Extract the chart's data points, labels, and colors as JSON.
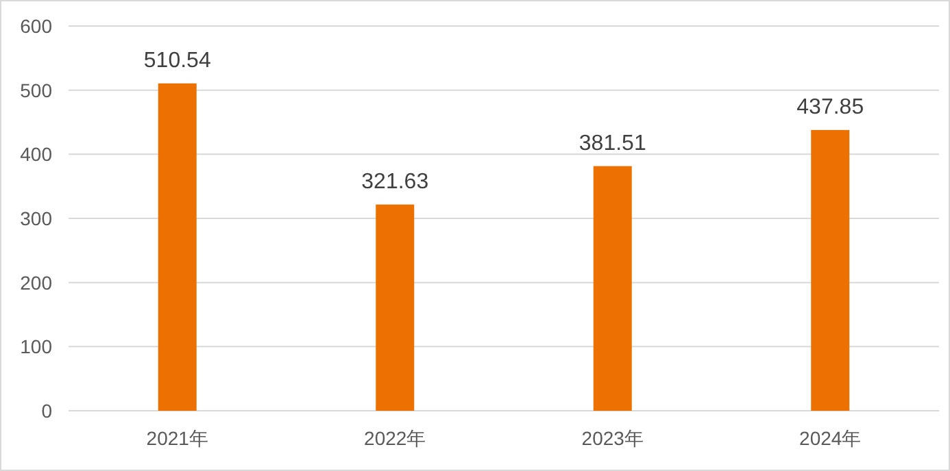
{
  "chart_data": {
    "type": "bar",
    "categories": [
      "2021年",
      "2022年",
      "2023年",
      "2024年"
    ],
    "values": [
      510.54,
      321.63,
      381.51,
      437.85
    ],
    "color": "#ed7100",
    "ylim": [
      0,
      600
    ],
    "yticks": [
      0,
      100,
      200,
      300,
      400,
      500,
      600
    ],
    "grid": "y",
    "data_labels": true
  }
}
